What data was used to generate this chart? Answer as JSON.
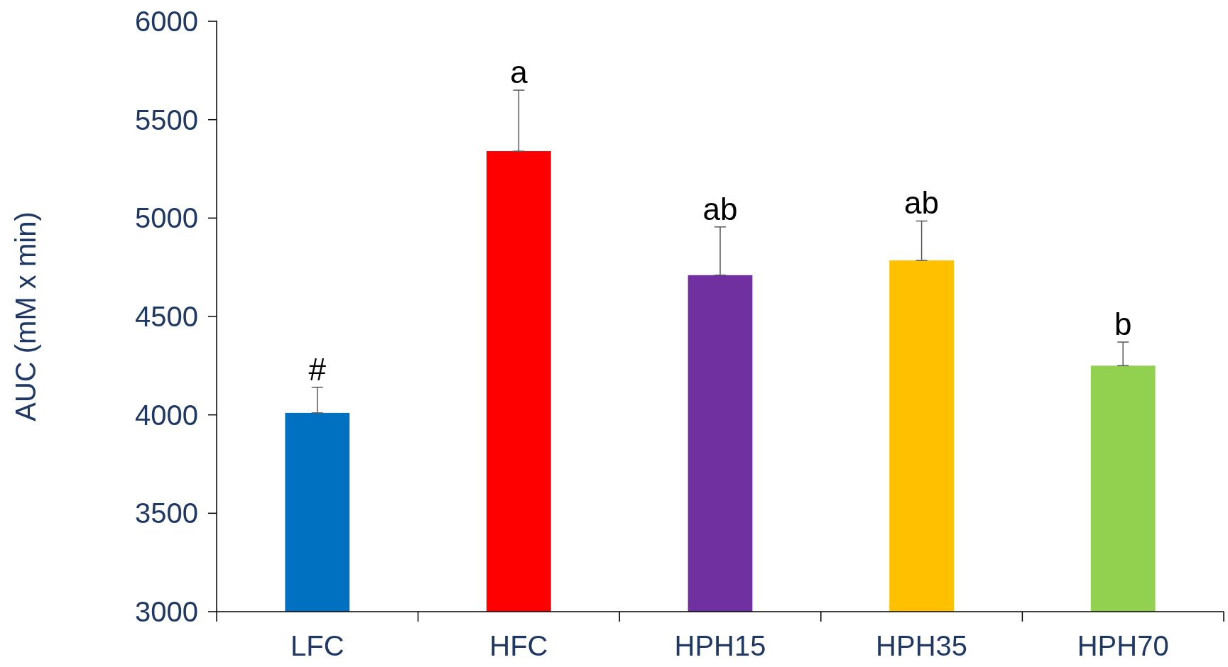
{
  "chart_data": {
    "type": "bar",
    "ylabel": "AUC (mM x min)",
    "categories": [
      "LFC",
      "HFC",
      "HPH15",
      "HPH35",
      "HPH70"
    ],
    "values": [
      4010,
      5340,
      4710,
      4785,
      4250
    ],
    "colors": [
      "#0070c0",
      "#ff0000",
      "#7030a0",
      "#ffc000",
      "#92d050"
    ],
    "errors": [
      [
        4010,
        4140
      ],
      [
        5340,
        5650
      ],
      [
        4710,
        4955
      ],
      [
        4785,
        4985
      ],
      [
        4250,
        4370
      ]
    ],
    "ylim": [
      3000,
      6000
    ],
    "yticks": [
      3000,
      3500,
      4000,
      4500,
      5000,
      5500,
      6000
    ],
    "grid": false,
    "annotations": [
      {
        "text": "#",
        "x": "LFC",
        "y": 4140
      },
      {
        "text": "a",
        "x": "HFC",
        "y": 5650
      },
      {
        "text": "ab",
        "x": "HPH15",
        "y": 4955
      },
      {
        "text": "ab",
        "x": "HPH35",
        "y": 4985
      },
      {
        "text": "b",
        "x": "HPH70",
        "y": 4370
      }
    ]
  }
}
